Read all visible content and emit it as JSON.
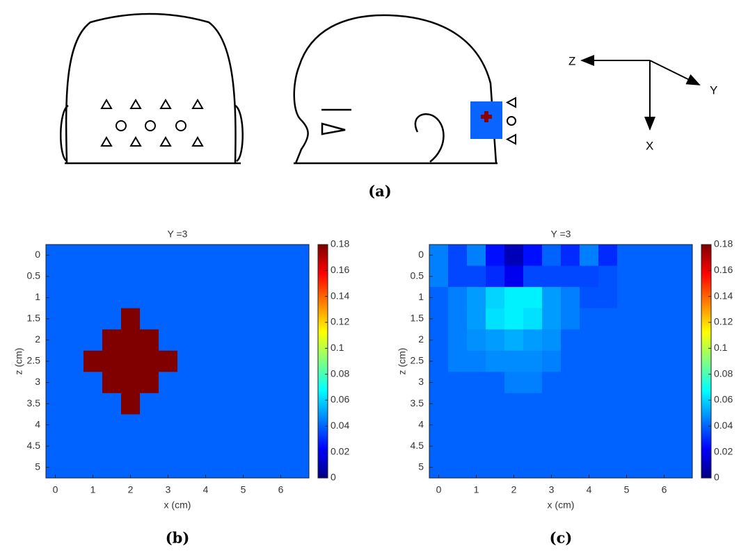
{
  "diagram": {
    "axes": [
      "Z",
      "Y",
      "X"
    ],
    "panel_label": "(a)"
  },
  "chart_data": [
    {
      "type": "heatmap",
      "title": "Y =3",
      "xlabel": "x (cm)",
      "ylabel": "z (cm)",
      "panel_label": "(b)",
      "x": [
        0,
        0.5,
        1,
        1.5,
        2,
        2.5,
        3,
        3.5,
        4,
        4.5,
        5,
        5.5,
        6,
        6.5
      ],
      "y": [
        0,
        0.5,
        1,
        1.5,
        2,
        2.5,
        3,
        3.5,
        4,
        4.5,
        5
      ],
      "values": [
        [
          0.04,
          0.04,
          0.04,
          0.04,
          0.04,
          0.04,
          0.04,
          0.04,
          0.04,
          0.04,
          0.04,
          0.04,
          0.04,
          0.04
        ],
        [
          0.04,
          0.04,
          0.04,
          0.04,
          0.04,
          0.04,
          0.04,
          0.04,
          0.04,
          0.04,
          0.04,
          0.04,
          0.04,
          0.04
        ],
        [
          0.04,
          0.04,
          0.04,
          0.04,
          0.04,
          0.04,
          0.04,
          0.04,
          0.04,
          0.04,
          0.04,
          0.04,
          0.04,
          0.04
        ],
        [
          0.04,
          0.04,
          0.04,
          0.04,
          0.18,
          0.04,
          0.04,
          0.04,
          0.04,
          0.04,
          0.04,
          0.04,
          0.04,
          0.04
        ],
        [
          0.04,
          0.04,
          0.04,
          0.18,
          0.18,
          0.18,
          0.04,
          0.04,
          0.04,
          0.04,
          0.04,
          0.04,
          0.04,
          0.04
        ],
        [
          0.04,
          0.04,
          0.18,
          0.18,
          0.18,
          0.18,
          0.18,
          0.04,
          0.04,
          0.04,
          0.04,
          0.04,
          0.04,
          0.04
        ],
        [
          0.04,
          0.04,
          0.04,
          0.18,
          0.18,
          0.18,
          0.04,
          0.04,
          0.04,
          0.04,
          0.04,
          0.04,
          0.04,
          0.04
        ],
        [
          0.04,
          0.04,
          0.04,
          0.04,
          0.18,
          0.04,
          0.04,
          0.04,
          0.04,
          0.04,
          0.04,
          0.04,
          0.04,
          0.04
        ],
        [
          0.04,
          0.04,
          0.04,
          0.04,
          0.04,
          0.04,
          0.04,
          0.04,
          0.04,
          0.04,
          0.04,
          0.04,
          0.04,
          0.04
        ],
        [
          0.04,
          0.04,
          0.04,
          0.04,
          0.04,
          0.04,
          0.04,
          0.04,
          0.04,
          0.04,
          0.04,
          0.04,
          0.04,
          0.04
        ],
        [
          0.04,
          0.04,
          0.04,
          0.04,
          0.04,
          0.04,
          0.04,
          0.04,
          0.04,
          0.04,
          0.04,
          0.04,
          0.04,
          0.04
        ]
      ],
      "colormap": "jet",
      "clim": [
        0,
        0.18
      ],
      "cticks": [
        0,
        0.02,
        0.04,
        0.06,
        0.08,
        0.1,
        0.12,
        0.14,
        0.16,
        0.18
      ],
      "xlim": [
        -0.25,
        6.75
      ],
      "xticks": [
        0,
        1,
        2,
        3,
        4,
        5,
        6
      ],
      "ylim": [
        -0.25,
        5.25
      ],
      "yticks": [
        0,
        0.5,
        1,
        1.5,
        2,
        2.5,
        3,
        3.5,
        4,
        4.5,
        5
      ],
      "y_reversed": true
    },
    {
      "type": "heatmap",
      "title": "Y =3",
      "xlabel": "x (cm)",
      "ylabel": "z (cm)",
      "panel_label": "(c)",
      "x": [
        0,
        0.5,
        1,
        1.5,
        2,
        2.5,
        3,
        3.5,
        4,
        4.5,
        5,
        5.5,
        6,
        6.5
      ],
      "y": [
        0,
        0.5,
        1,
        1.5,
        2,
        2.5,
        3,
        3.5,
        4,
        4.5,
        5
      ],
      "values": [
        [
          0.045,
          0.035,
          0.045,
          0.025,
          0.01,
          0.025,
          0.04,
          0.03,
          0.045,
          0.03,
          0.04,
          0.04,
          0.04,
          0.04
        ],
        [
          0.045,
          0.035,
          0.035,
          0.03,
          0.02,
          0.035,
          0.035,
          0.035,
          0.035,
          0.037,
          0.04,
          0.04,
          0.04,
          0.04
        ],
        [
          0.04,
          0.045,
          0.05,
          0.06,
          0.065,
          0.065,
          0.05,
          0.045,
          0.037,
          0.037,
          0.04,
          0.04,
          0.04,
          0.04
        ],
        [
          0.04,
          0.045,
          0.05,
          0.062,
          0.065,
          0.062,
          0.05,
          0.045,
          0.04,
          0.04,
          0.04,
          0.04,
          0.04,
          0.04
        ],
        [
          0.04,
          0.045,
          0.048,
          0.05,
          0.053,
          0.05,
          0.048,
          0.04,
          0.04,
          0.04,
          0.04,
          0.04,
          0.04,
          0.04
        ],
        [
          0.04,
          0.045,
          0.045,
          0.047,
          0.047,
          0.047,
          0.045,
          0.04,
          0.04,
          0.04,
          0.04,
          0.04,
          0.04,
          0.04
        ],
        [
          0.04,
          0.04,
          0.04,
          0.04,
          0.045,
          0.045,
          0.04,
          0.04,
          0.04,
          0.04,
          0.04,
          0.04,
          0.04,
          0.04
        ],
        [
          0.04,
          0.04,
          0.04,
          0.04,
          0.04,
          0.04,
          0.04,
          0.04,
          0.04,
          0.04,
          0.04,
          0.04,
          0.04,
          0.04
        ],
        [
          0.04,
          0.04,
          0.04,
          0.04,
          0.04,
          0.04,
          0.04,
          0.04,
          0.04,
          0.04,
          0.04,
          0.04,
          0.04,
          0.04
        ],
        [
          0.04,
          0.04,
          0.04,
          0.04,
          0.04,
          0.04,
          0.04,
          0.04,
          0.04,
          0.04,
          0.04,
          0.04,
          0.04,
          0.04
        ],
        [
          0.04,
          0.04,
          0.04,
          0.04,
          0.04,
          0.04,
          0.04,
          0.04,
          0.04,
          0.04,
          0.04,
          0.04,
          0.04,
          0.04
        ]
      ],
      "colormap": "jet",
      "clim": [
        0,
        0.18
      ],
      "cticks": [
        0,
        0.02,
        0.04,
        0.06,
        0.08,
        0.1,
        0.12,
        0.14,
        0.16,
        0.18
      ],
      "xlim": [
        -0.25,
        6.75
      ],
      "xticks": [
        0,
        1,
        2,
        3,
        4,
        5,
        6
      ],
      "ylim": [
        -0.25,
        5.25
      ],
      "yticks": [
        0,
        0.5,
        1,
        1.5,
        2,
        2.5,
        3,
        3.5,
        4,
        4.5,
        5
      ],
      "y_reversed": true
    }
  ]
}
